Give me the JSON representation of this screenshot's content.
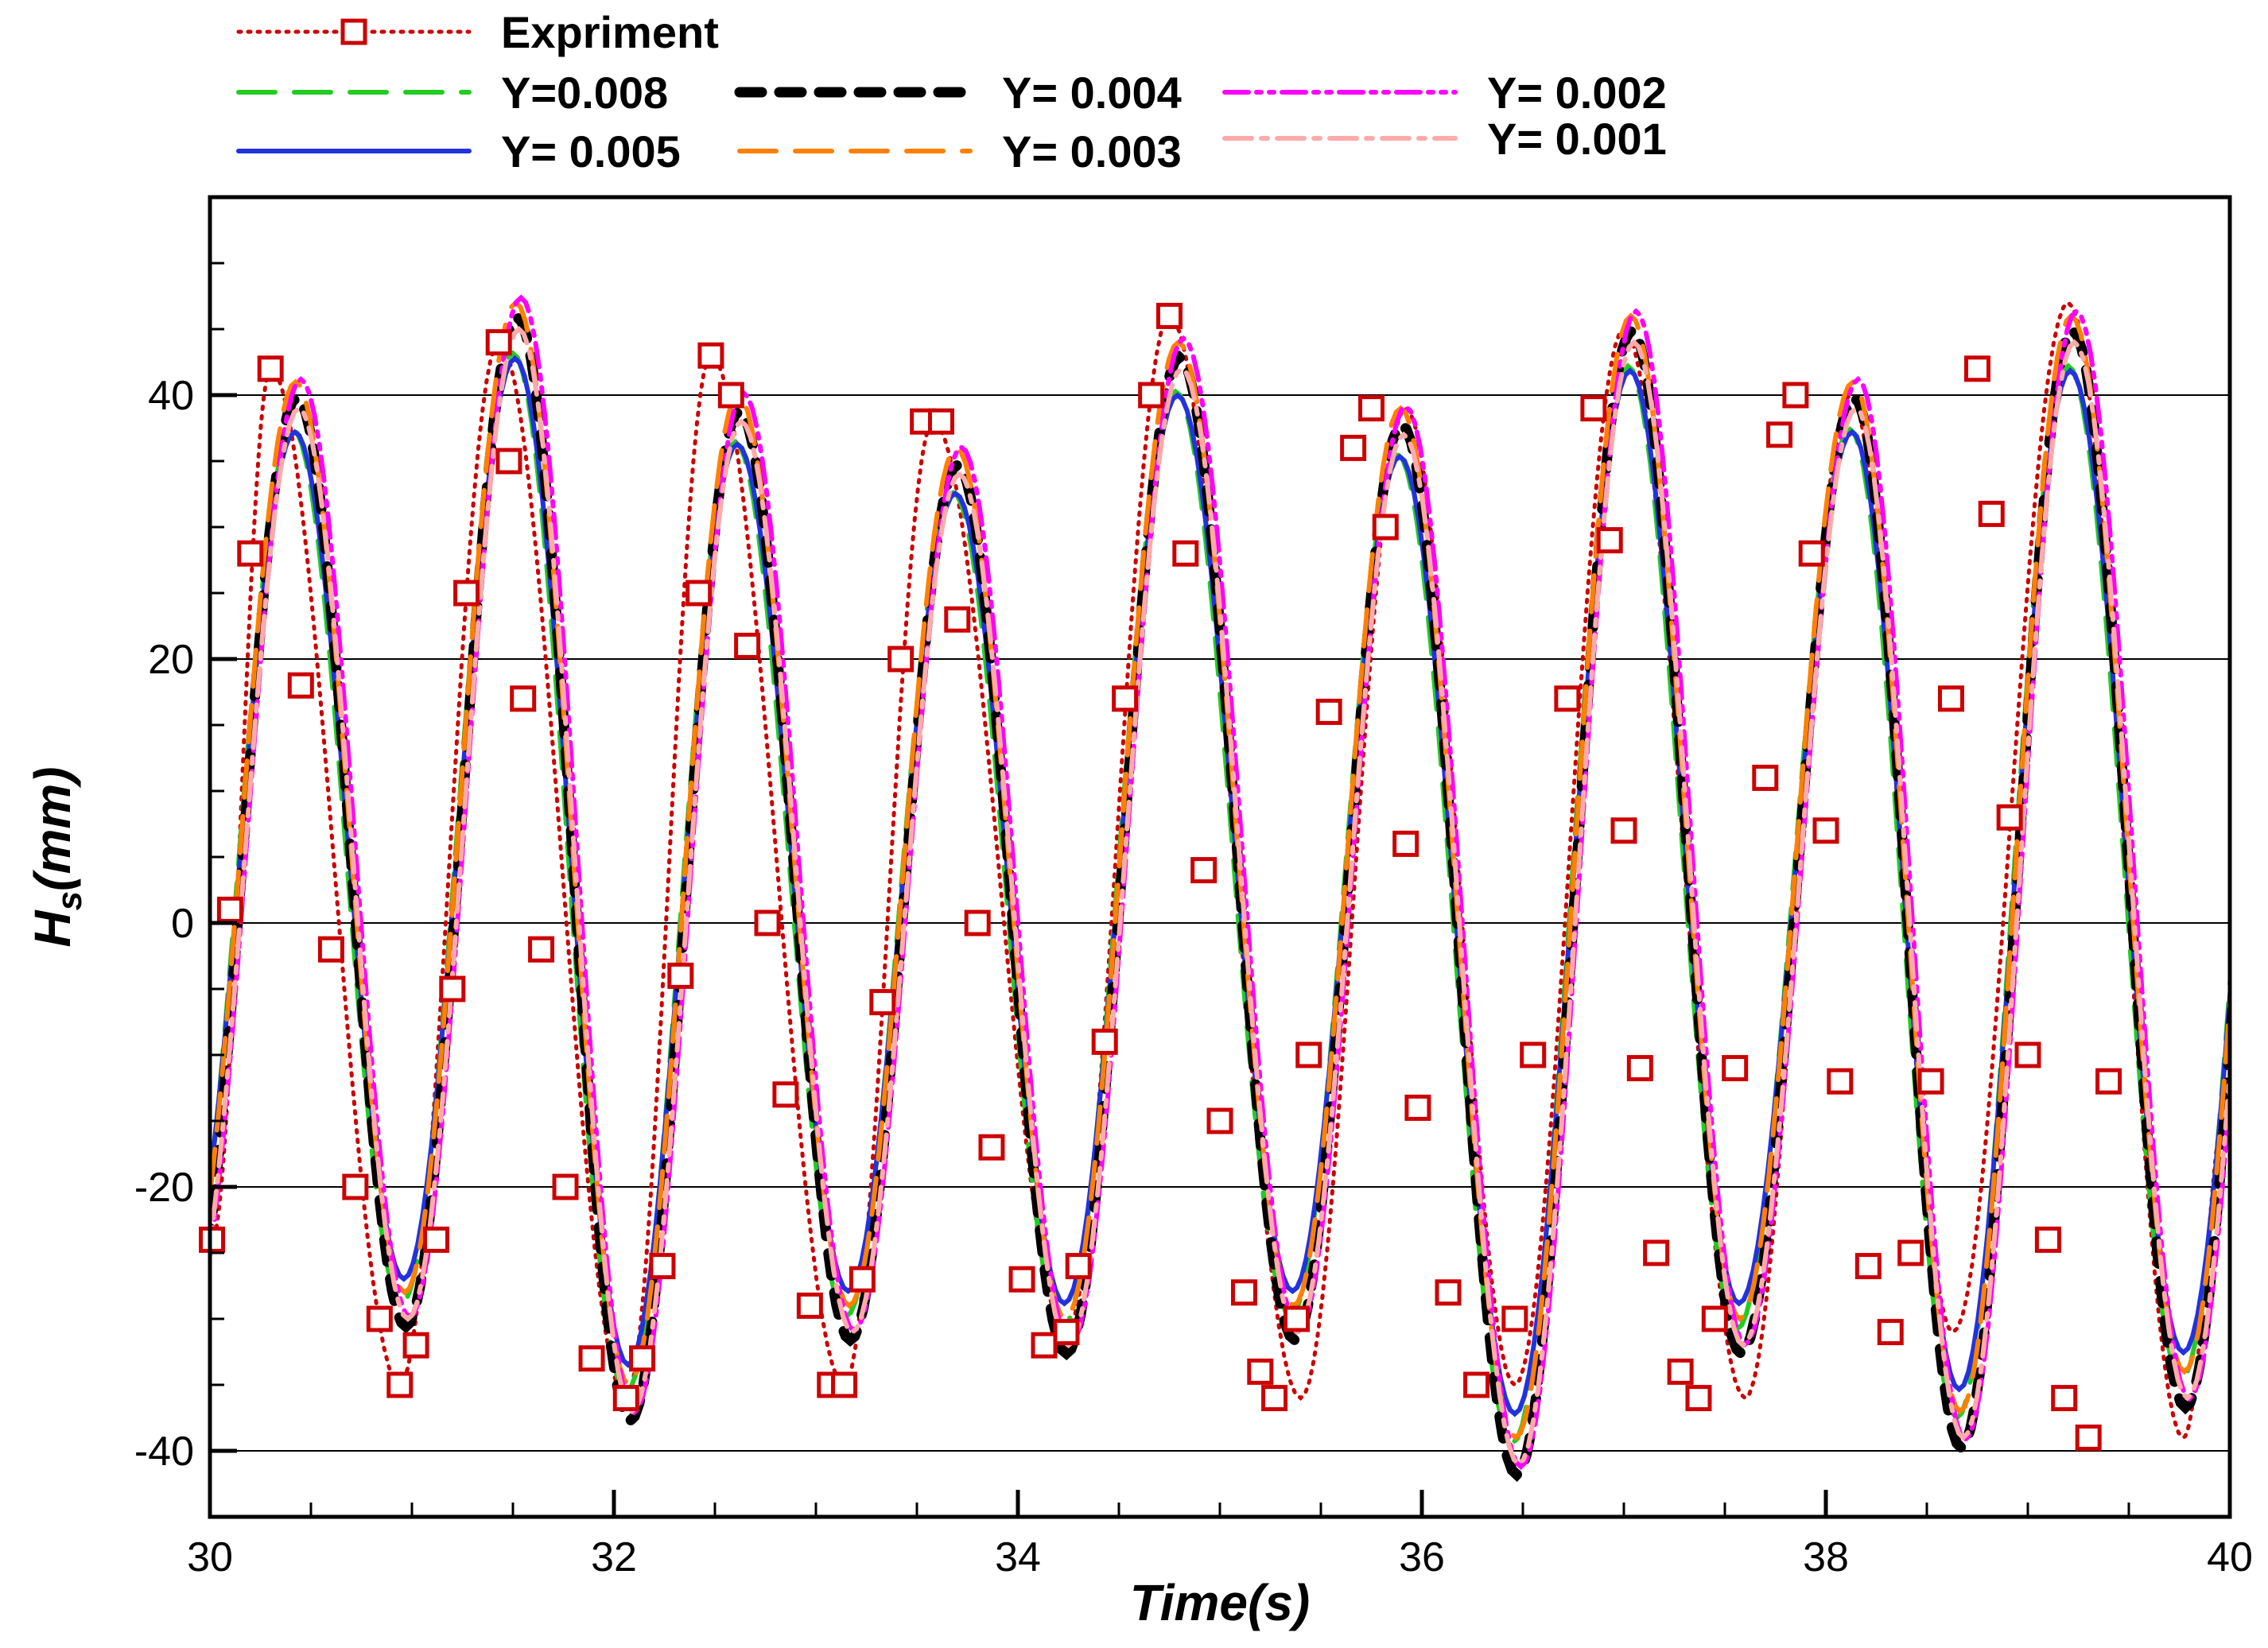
{
  "chart_data": {
    "type": "line",
    "xlabel": "Time(s)",
    "ylabel": "H_s(mm)",
    "ylabel_main": "H",
    "ylabel_sub": "s",
    "ylabel_unit": "(mm)",
    "xlim": [
      30,
      40
    ],
    "ylim": [
      -45,
      55
    ],
    "x_ticks": [
      30,
      32,
      34,
      36,
      38,
      40
    ],
    "y_ticks": [
      -40,
      -20,
      0,
      20,
      40
    ],
    "x_tick_labels": [
      "30",
      "32",
      "34",
      "36",
      "38",
      "40"
    ],
    "y_tick_labels": [
      "-40",
      "-20",
      "0",
      "20",
      "40"
    ],
    "grid": "horizontal at major y ticks",
    "legend_position": "top, above plot",
    "wave": {
      "x": [
        30.41,
        30.95,
        31.5,
        32.06,
        32.6,
        33.15,
        33.68,
        34.22,
        34.78,
        35.35,
        35.88,
        36.45,
        37.02,
        37.56,
        38.12,
        38.65,
        39.2,
        39.76
      ],
      "y": [
        40,
        -29,
        46,
        -36,
        39,
        -30,
        35,
        -31,
        43,
        -30,
        38,
        -40,
        45,
        -31,
        40,
        -38,
        45,
        -35
      ]
    },
    "series": [
      {
        "name": "Expriment",
        "color": "#cc0000",
        "dash": "dotted",
        "marker": "open-square",
        "peaks": [
          [
            30.01,
            -24
          ],
          [
            30.3,
            42
          ],
          [
            30.94,
            -35
          ],
          [
            31.43,
            44
          ],
          [
            32.06,
            -36
          ],
          [
            32.48,
            43
          ],
          [
            33.14,
            -35
          ],
          [
            33.58,
            38
          ],
          [
            34.24,
            -31
          ],
          [
            34.75,
            46
          ],
          [
            35.4,
            -36
          ],
          [
            35.92,
            39
          ],
          [
            36.46,
            -35
          ],
          [
            37.0,
            45
          ],
          [
            37.6,
            -36
          ],
          [
            38.12,
            40
          ],
          [
            38.63,
            -31
          ],
          [
            39.2,
            47
          ],
          [
            39.77,
            -39
          ],
          [
            40.0,
            -12
          ]
        ],
        "markers": [
          [
            30.01,
            -24
          ],
          [
            30.1,
            1
          ],
          [
            30.2,
            28
          ],
          [
            30.3,
            42
          ],
          [
            30.45,
            18
          ],
          [
            30.6,
            -2
          ],
          [
            30.72,
            -20
          ],
          [
            30.84,
            -30
          ],
          [
            30.94,
            -35
          ],
          [
            31.02,
            -32
          ],
          [
            31.12,
            -24
          ],
          [
            31.2,
            -5
          ],
          [
            31.27,
            25
          ],
          [
            31.43,
            44
          ],
          [
            31.48,
            35
          ],
          [
            31.55,
            17
          ],
          [
            31.64,
            -2
          ],
          [
            31.76,
            -20
          ],
          [
            31.89,
            -33
          ],
          [
            32.06,
            -36
          ],
          [
            32.14,
            -33
          ],
          [
            32.24,
            -26
          ],
          [
            32.33,
            -4
          ],
          [
            32.42,
            25
          ],
          [
            32.48,
            43
          ],
          [
            32.58,
            40
          ],
          [
            32.66,
            21
          ],
          [
            32.76,
            0
          ],
          [
            32.85,
            -13
          ],
          [
            32.97,
            -29
          ],
          [
            33.07,
            -35
          ],
          [
            33.14,
            -35
          ],
          [
            33.23,
            -27
          ],
          [
            33.33,
            -6
          ],
          [
            33.42,
            20
          ],
          [
            33.53,
            38
          ],
          [
            33.62,
            38
          ],
          [
            33.7,
            23
          ],
          [
            33.8,
            0
          ],
          [
            33.87,
            -17
          ],
          [
            34.02,
            -27
          ],
          [
            34.13,
            -32
          ],
          [
            34.24,
            -31
          ],
          [
            34.3,
            -26
          ],
          [
            34.43,
            -9
          ],
          [
            34.53,
            17
          ],
          [
            34.66,
            40
          ],
          [
            34.75,
            46
          ],
          [
            34.83,
            28
          ],
          [
            34.92,
            4
          ],
          [
            35.0,
            -15
          ],
          [
            35.12,
            -28
          ],
          [
            35.2,
            -34
          ],
          [
            35.27,
            -36
          ],
          [
            35.38,
            -30
          ],
          [
            35.44,
            -10
          ],
          [
            35.54,
            16
          ],
          [
            35.66,
            36
          ],
          [
            35.75,
            39
          ],
          [
            35.82,
            30
          ],
          [
            35.92,
            6
          ],
          [
            35.98,
            -14
          ],
          [
            36.13,
            -28
          ],
          [
            36.27,
            -35
          ],
          [
            36.46,
            -30
          ],
          [
            36.55,
            -10
          ],
          [
            36.72,
            17
          ],
          [
            36.85,
            39
          ],
          [
            36.93,
            29
          ],
          [
            37.0,
            7
          ],
          [
            37.08,
            -11
          ],
          [
            37.16,
            -25
          ],
          [
            37.28,
            -34
          ],
          [
            37.37,
            -36
          ],
          [
            37.45,
            -30
          ],
          [
            37.55,
            -11
          ],
          [
            37.7,
            11
          ],
          [
            37.77,
            37
          ],
          [
            37.85,
            40
          ],
          [
            37.93,
            28
          ],
          [
            38.0,
            7
          ],
          [
            38.07,
            -12
          ],
          [
            38.21,
            -26
          ],
          [
            38.32,
            -31
          ],
          [
            38.42,
            -25
          ],
          [
            38.52,
            -12
          ],
          [
            38.62,
            17
          ],
          [
            38.75,
            42
          ],
          [
            38.82,
            31
          ],
          [
            38.91,
            8
          ],
          [
            39.0,
            -10
          ],
          [
            39.1,
            -24
          ],
          [
            39.18,
            -36
          ],
          [
            39.3,
            -39
          ],
          [
            39.4,
            -12
          ]
        ]
      },
      {
        "name": "Y=0.008",
        "color": "#22cc22",
        "dash": "long-dash"
      },
      {
        "name": "Y= 0.005",
        "color": "#2233dd",
        "dash": "solid"
      },
      {
        "name": "Y= 0.004",
        "color": "#000000",
        "dash": "heavy-dash"
      },
      {
        "name": "Y= 0.003",
        "color": "#ff8000",
        "dash": "long-dash"
      },
      {
        "name": "Y= 0.002",
        "color": "#ff00ff",
        "dash": "dash-dot-dot"
      },
      {
        "name": "Y= 0.001",
        "color": "#ffaaaa",
        "dash": "dash-dot"
      }
    ]
  }
}
